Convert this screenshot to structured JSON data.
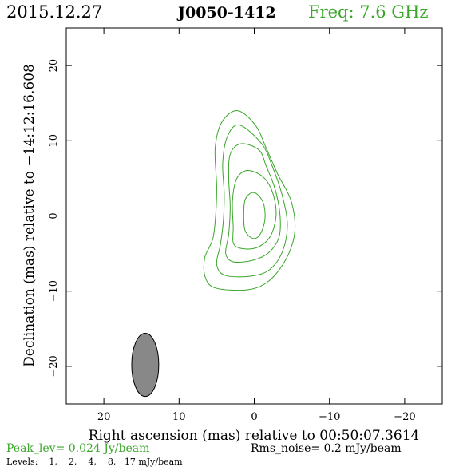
{
  "header": {
    "date": "2015.12.27",
    "source": "J0050-1412",
    "freq": "Freq: 7.6 GHz"
  },
  "footer": {
    "peak": "Peak_lev=  0.024 Jy/beam",
    "rms": "Rms_noise=   0.2 mJy/beam",
    "levels": "Levels:    1,    2,    4,    8,   17 mJy/beam"
  },
  "colors": {
    "contour": "#3aa62a",
    "beam_fill": "#888888",
    "axis": "#000000"
  },
  "chart_data": {
    "type": "contour",
    "title": "J0050-1412",
    "xlabel": "Right ascension (mas) relative to 00:50:07.3614",
    "ylabel": "Declination (mas) relative to −14:12:16.608",
    "xlim": [
      25,
      -25
    ],
    "ylim": [
      -25,
      25
    ],
    "xticks": [
      20,
      10,
      0,
      -10,
      -20
    ],
    "yticks": [
      -20,
      -10,
      0,
      10,
      20
    ],
    "xtick_labels": [
      "20",
      "10",
      "0",
      "−10",
      "−20"
    ],
    "ytick_labels": [
      "−20",
      "−10",
      "0",
      "10",
      "20"
    ],
    "peak_jy_per_beam": 0.024,
    "rms_mjy_per_beam": 0.2,
    "levels_mjy_per_beam": [
      1,
      2,
      4,
      8,
      17
    ],
    "contours": [
      {
        "level": 1,
        "points": [
          [
            2.2,
            14.0
          ],
          [
            4.3,
            12.5
          ],
          [
            5.2,
            9.0
          ],
          [
            5.0,
            4.0
          ],
          [
            5.1,
            0.6
          ],
          [
            5.5,
            -3.0
          ],
          [
            6.6,
            -5.6
          ],
          [
            6.5,
            -8.2
          ],
          [
            5.1,
            -9.6
          ],
          [
            0.8,
            -9.8
          ],
          [
            -2.0,
            -8.6
          ],
          [
            -4.3,
            -5.6
          ],
          [
            -5.4,
            -2.0
          ],
          [
            -4.9,
            2.0
          ],
          [
            -3.1,
            5.6
          ],
          [
            -1.6,
            9.0
          ],
          [
            -0.2,
            12.0
          ]
        ]
      },
      {
        "level": 2,
        "points": [
          [
            2.0,
            12.1
          ],
          [
            3.6,
            10.5
          ],
          [
            4.2,
            7.0
          ],
          [
            4.0,
            3.0
          ],
          [
            4.1,
            -0.5
          ],
          [
            4.5,
            -3.8
          ],
          [
            5.0,
            -6.4
          ],
          [
            3.9,
            -7.9
          ],
          [
            0.4,
            -8.0
          ],
          [
            -2.1,
            -7.1
          ],
          [
            -3.8,
            -4.6
          ],
          [
            -4.4,
            -1.1
          ],
          [
            -3.7,
            2.8
          ],
          [
            -2.4,
            6.6
          ],
          [
            -1.0,
            9.6
          ]
        ]
      },
      {
        "level": 4,
        "points": [
          [
            1.8,
            9.6
          ],
          [
            3.2,
            8.2
          ],
          [
            3.4,
            5.0
          ],
          [
            3.2,
            1.2
          ],
          [
            3.4,
            -2.4
          ],
          [
            3.8,
            -5.0
          ],
          [
            2.8,
            -6.1
          ],
          [
            0.2,
            -5.9
          ],
          [
            -1.9,
            -4.9
          ],
          [
            -3.3,
            -2.8
          ],
          [
            -3.4,
            0.4
          ],
          [
            -2.7,
            3.8
          ],
          [
            -1.6,
            6.6
          ],
          [
            -0.6,
            8.8
          ]
        ]
      },
      {
        "level": 8,
        "points": [
          [
            1.2,
            6.0
          ],
          [
            2.4,
            4.8
          ],
          [
            2.9,
            2.0
          ],
          [
            2.8,
            -1.4
          ],
          [
            2.7,
            -3.8
          ],
          [
            1.0,
            -4.4
          ],
          [
            -0.8,
            -4.0
          ],
          [
            -2.2,
            -2.6
          ],
          [
            -2.9,
            0.0
          ],
          [
            -2.6,
            2.6
          ],
          [
            -1.7,
            4.6
          ],
          [
            -0.4,
            5.7
          ]
        ]
      },
      {
        "level": 17,
        "points": [
          [
            0.3,
            3.1
          ],
          [
            1.2,
            2.2
          ],
          [
            1.4,
            0.2
          ],
          [
            1.2,
            -2.0
          ],
          [
            0.1,
            -3.0
          ],
          [
            -0.8,
            -2.4
          ],
          [
            -1.4,
            -0.6
          ],
          [
            -1.3,
            1.4
          ],
          [
            -0.6,
            2.7
          ]
        ]
      }
    ],
    "beam": {
      "x": 14.5,
      "y": -19.8,
      "bmaj": 8.4,
      "bmin": 3.6,
      "pa_deg": 0
    }
  }
}
